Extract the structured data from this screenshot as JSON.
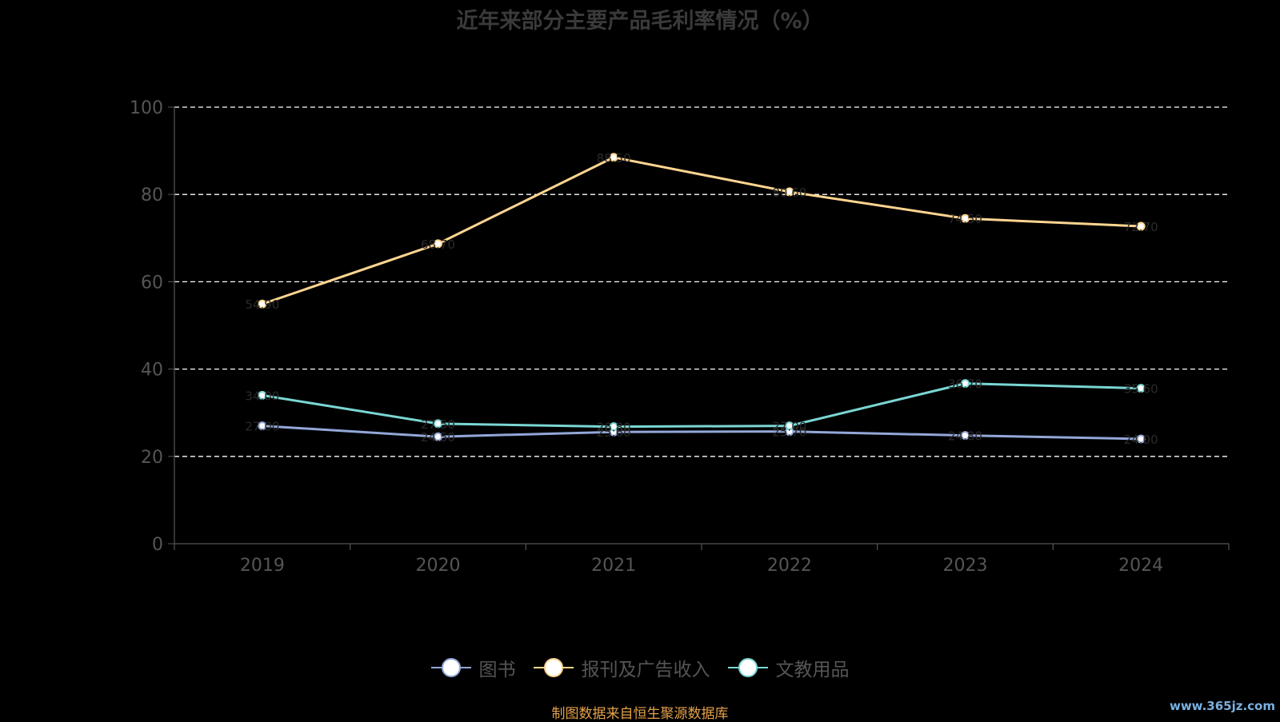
{
  "chart_data": {
    "type": "line",
    "title": "近年来部分主要产品毛利率情况（%）",
    "categories": [
      "2019",
      "2020",
      "2021",
      "2022",
      "2023",
      "2024"
    ],
    "ylim": [
      0,
      100
    ],
    "y_ticks": [
      "0",
      "20",
      "40",
      "60",
      "80",
      "100"
    ],
    "grid": true,
    "legend_position": "bottom",
    "series": [
      {
        "name": "图书",
        "values": [
          27.0,
          24.5,
          25.6,
          25.7,
          24.8,
          24.0
        ],
        "color": "#93a7d8"
      },
      {
        "name": "报刊及广告收入",
        "values": [
          54.9,
          68.7,
          88.5,
          80.6,
          74.5,
          72.7
        ],
        "color": "#ffd591"
      },
      {
        "name": "文教用品",
        "values": [
          34.0,
          27.5,
          26.8,
          27.0,
          36.7,
          35.6
        ],
        "color": "#7ad6d3"
      }
    ]
  },
  "source_note": "制图数据来自恒生聚源数据库",
  "watermark": "www.365jz.com"
}
